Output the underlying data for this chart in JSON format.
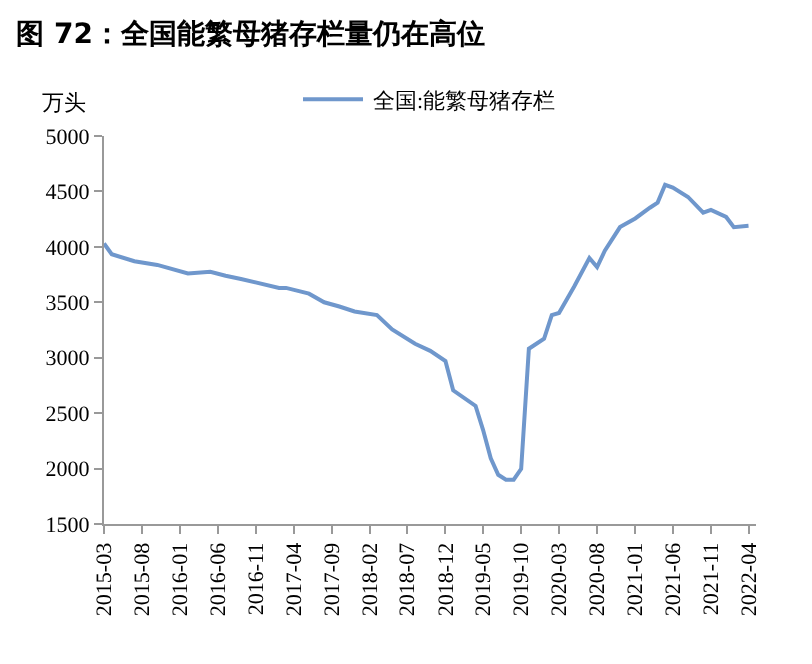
{
  "chart_data": {
    "type": "line",
    "title": "图 72：全国能繁母猪存栏量仍在高位",
    "ylabel": "万头",
    "x": [
      "2015-03",
      "2015-04",
      "2015-07",
      "2015-10",
      "2016-02",
      "2016-05",
      "2016-07",
      "2016-09",
      "2017-02",
      "2017-03",
      "2017-06",
      "2017-08",
      "2017-10",
      "2017-12",
      "2018-03",
      "2018-05",
      "2018-08",
      "2018-10",
      "2018-12",
      "2019-01",
      "2019-04",
      "2019-05",
      "2019-06",
      "2019-07",
      "2019-08",
      "2019-09",
      "2019-10",
      "2019-11",
      "2020-01",
      "2020-02",
      "2020-03",
      "2020-05",
      "2020-07",
      "2020-08",
      "2020-09",
      "2020-11",
      "2021-01",
      "2021-03",
      "2021-04",
      "2021-05",
      "2021-06",
      "2021-08",
      "2021-10",
      "2021-11",
      "2022-01",
      "2022-02",
      "2022-04"
    ],
    "series": [
      {
        "name": "全国:能繁母猪存栏",
        "color": "#6f97cc",
        "values": [
          4030,
          3934,
          3870,
          3837,
          3760,
          3775,
          3740,
          3710,
          3630,
          3630,
          3578,
          3500,
          3462,
          3417,
          3384,
          3256,
          3126,
          3062,
          2970,
          2706,
          2565,
          2350,
          2093,
          1944,
          1900,
          1900,
          1997,
          3081,
          3171,
          3384,
          3403,
          3643,
          3900,
          3818,
          3965,
          4178,
          4256,
          4353,
          4399,
          4560,
          4535,
          4450,
          4308,
          4333,
          4270,
          4178,
          4190
        ]
      }
    ],
    "xlim": [
      "2015-03",
      "2022-05"
    ],
    "xticks": [
      "2015-03",
      "2015-08",
      "2016-01",
      "2016-06",
      "2016-11",
      "2017-04",
      "2017-09",
      "2018-02",
      "2018-07",
      "2018-12",
      "2019-05",
      "2019-10",
      "2020-03",
      "2020-08",
      "2021-01",
      "2021-06",
      "2021-11",
      "2022-04"
    ],
    "ylim": [
      1500,
      5000
    ],
    "yticks": [
      1500,
      2000,
      2500,
      3000,
      3500,
      4000,
      4500,
      5000
    ],
    "grid": false,
    "legend": "top",
    "marker": "none",
    "line_style": "solid"
  }
}
